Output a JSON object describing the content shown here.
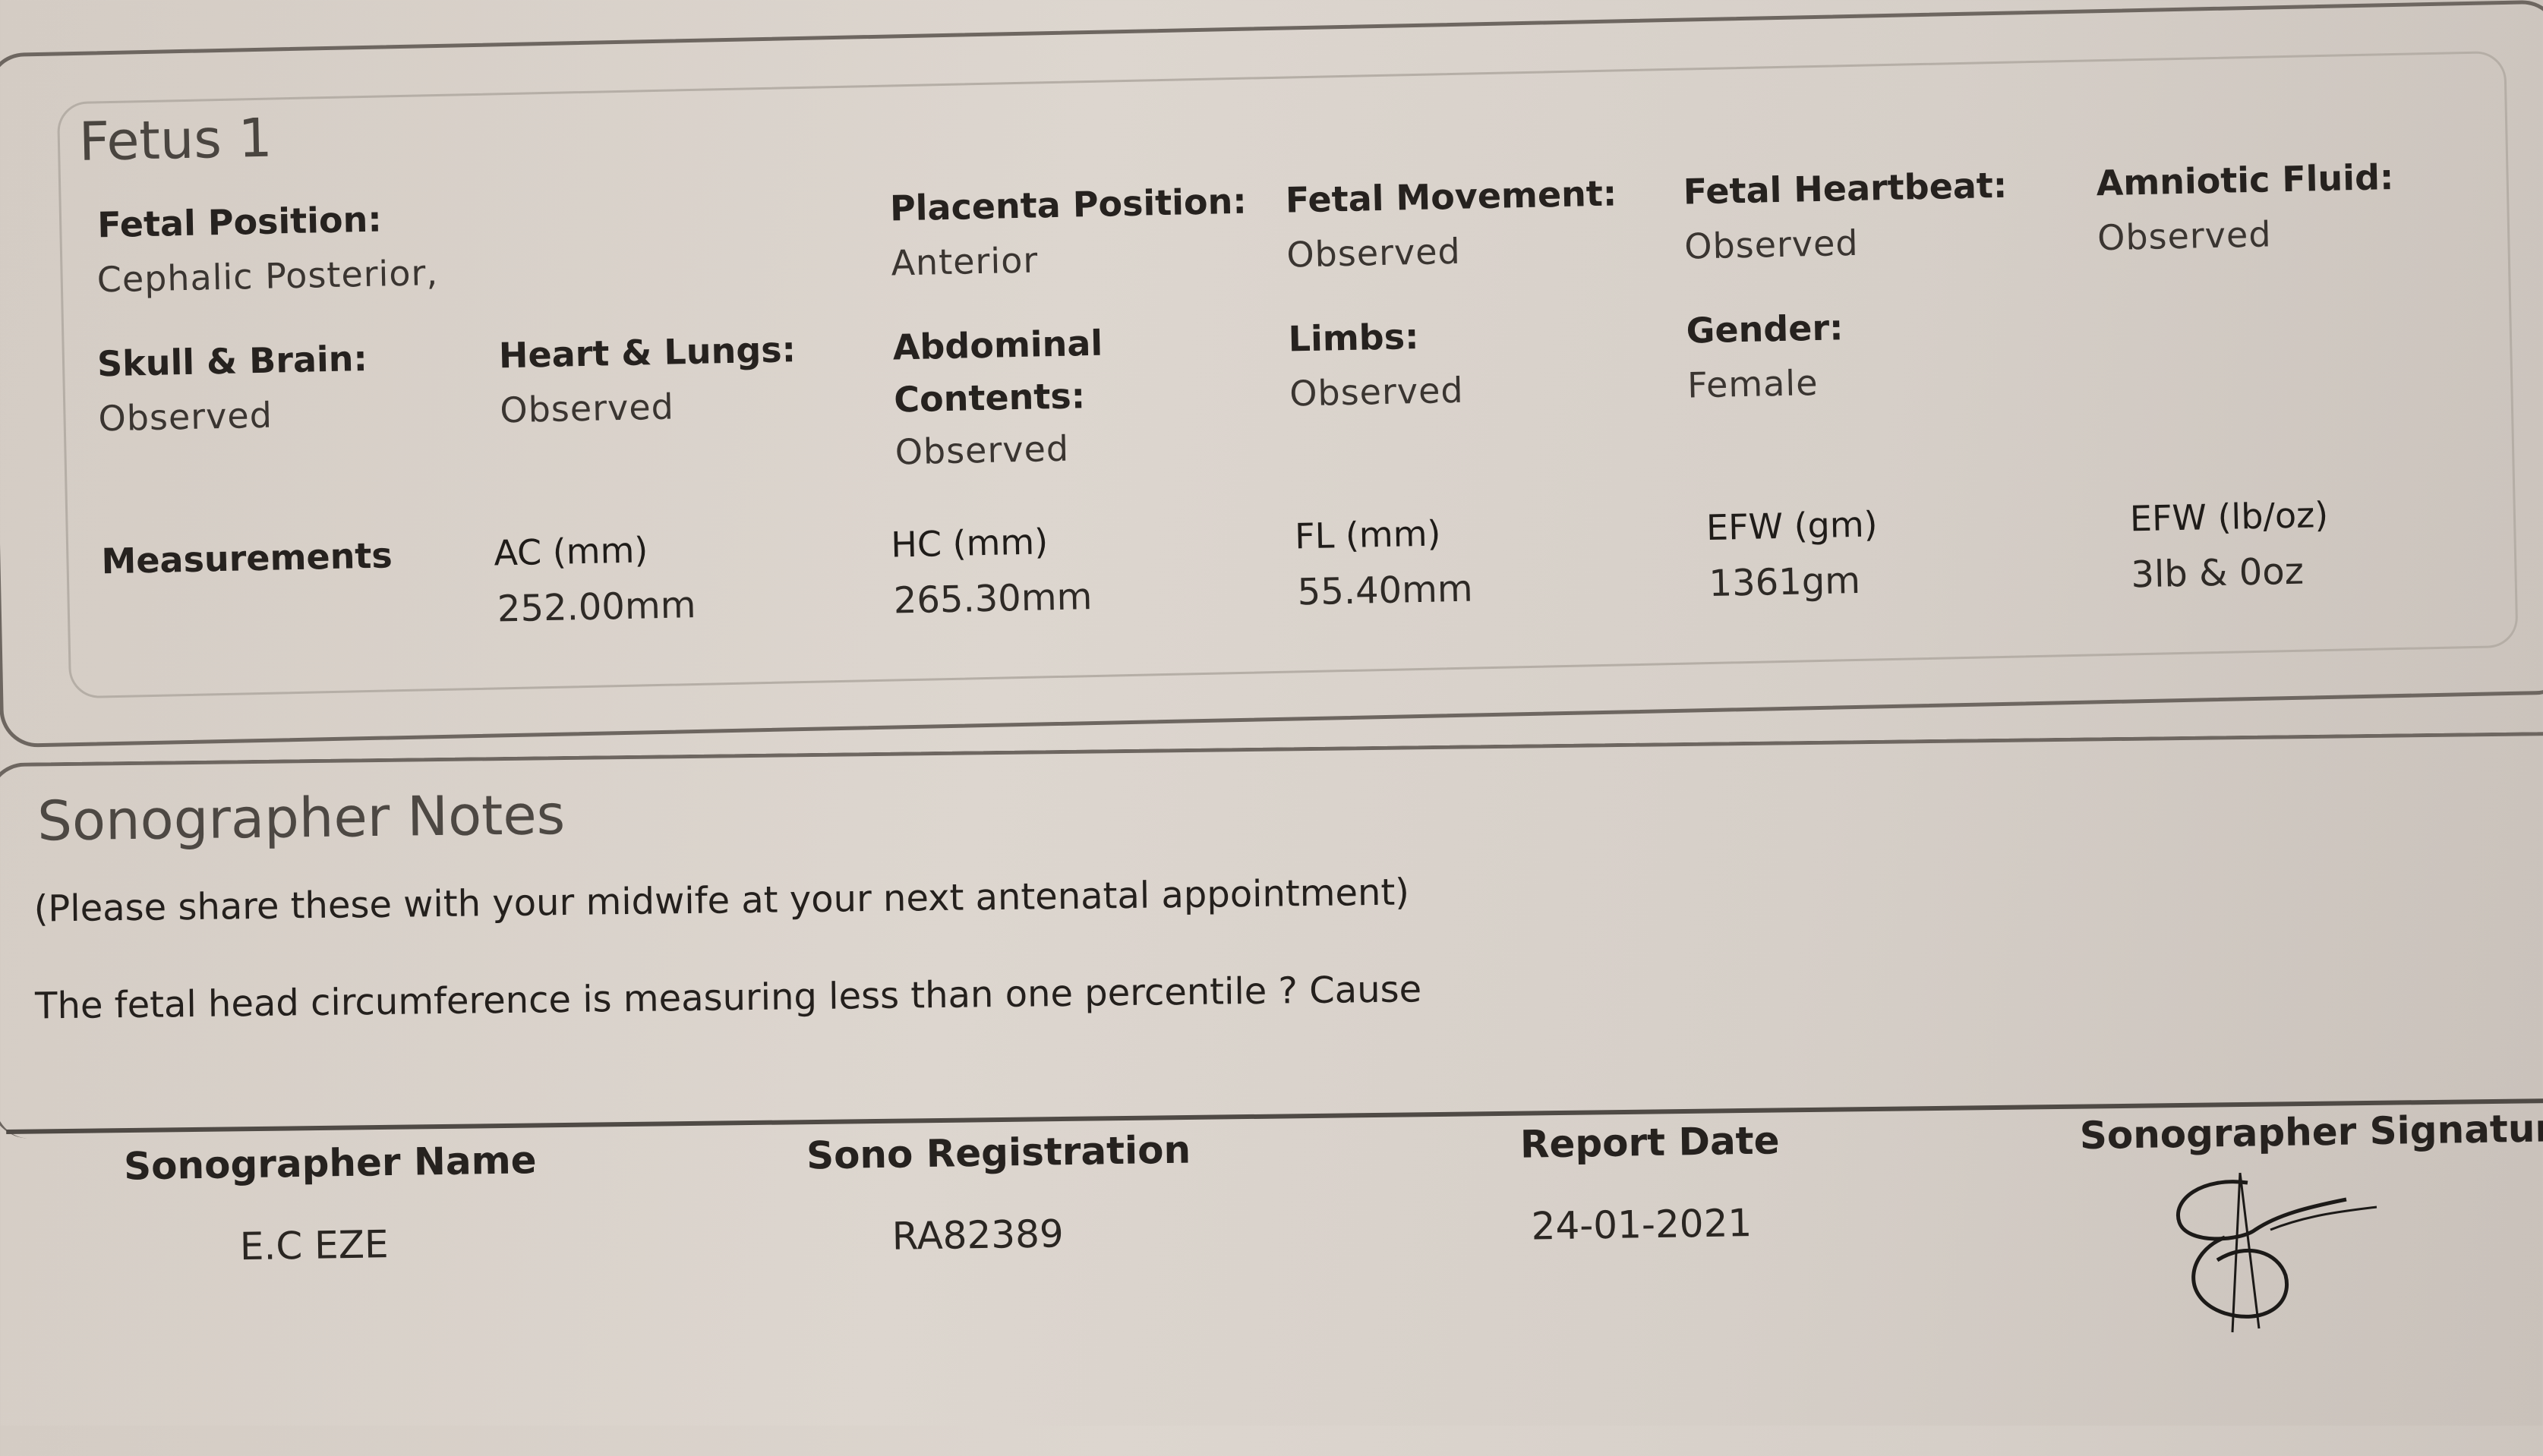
{
  "fetus": {
    "title": "Fetus 1",
    "fetal_position": {
      "label": "Fetal Position:",
      "value": "Cephalic Posterior,"
    },
    "placenta_position": {
      "label": "Placenta Position:",
      "value": "Anterior"
    },
    "fetal_movement": {
      "label": "Fetal Movement:",
      "value": "Observed"
    },
    "fetal_heartbeat": {
      "label": "Fetal Heartbeat:",
      "value": "Observed"
    },
    "amniotic_fluid": {
      "label": "Amniotic Fluid:",
      "value": "Observed"
    },
    "skull_brain": {
      "label": "Skull & Brain:",
      "value": "Observed"
    },
    "heart_lungs": {
      "label": "Heart & Lungs:",
      "value": "Observed"
    },
    "abdominal": {
      "label_1": "Abdominal",
      "label_2": "Contents:",
      "value": "Observed"
    },
    "limbs": {
      "label": "Limbs:",
      "value": "Observed"
    },
    "gender": {
      "label": "Gender:",
      "value": "Female"
    },
    "measurements": {
      "label": "Measurements",
      "items": [
        {
          "label": "AC (mm)",
          "value": "252.00mm"
        },
        {
          "label": "HC (mm)",
          "value": "265.30mm"
        },
        {
          "label": "FL (mm)",
          "value": "55.40mm"
        },
        {
          "label": "EFW (gm)",
          "value": "1361gm"
        },
        {
          "label": "EFW (lb/oz)",
          "value": "3lb & 0oz"
        }
      ]
    }
  },
  "notes": {
    "title": "Sonographer Notes",
    "instruction": "(Please share these with your midwife at your next antenatal appointment)",
    "text": "The fetal head circumference is measuring less than one percentile ? Cause"
  },
  "footer": {
    "name": {
      "label": "Sonographer Name",
      "value": "E.C EZE"
    },
    "registration": {
      "label": "Sono Registration",
      "value": "RA82389"
    },
    "date": {
      "label": "Report Date",
      "value": "24-01-2021"
    },
    "signature": {
      "label": "Sonographer Signature"
    }
  }
}
